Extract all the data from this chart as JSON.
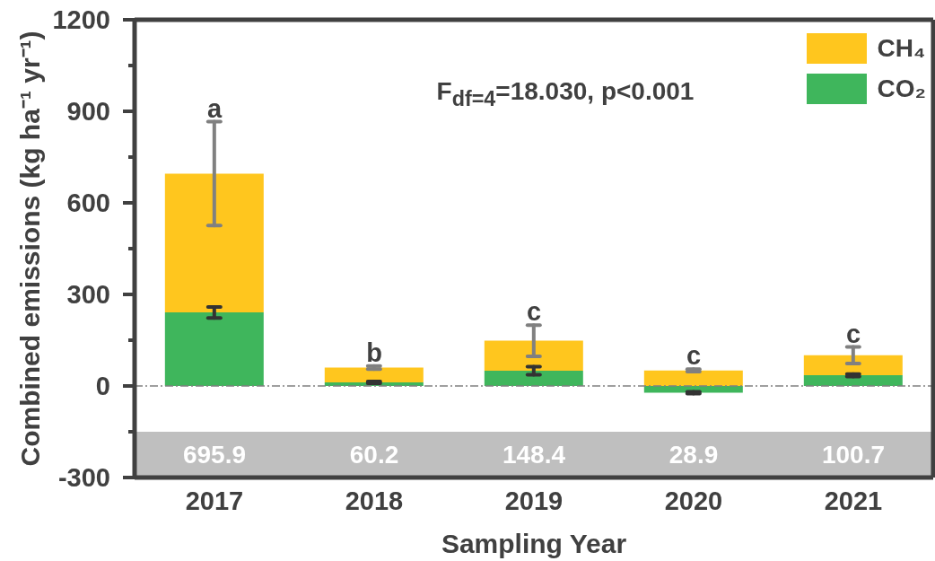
{
  "chart_data": {
    "type": "bar",
    "xlabel": "Sampling Year",
    "ylabel": "Combined emissions (kg ha⁻¹ yr⁻¹)",
    "categories": [
      "2017",
      "2018",
      "2019",
      "2020",
      "2021"
    ],
    "series": [
      {
        "name": "CO₂",
        "color": "#3fb65c",
        "values": [
          241,
          12,
          50,
          -22,
          35
        ],
        "errors": [
          18,
          3,
          13,
          3,
          4
        ]
      },
      {
        "name": "CH₄",
        "color": "#ffc61e",
        "values": [
          454.9,
          48.2,
          98.4,
          50.9,
          65.7
        ],
        "errors": [
          170,
          5,
          51,
          4,
          27
        ]
      }
    ],
    "stacked": true,
    "ylim": [
      -300,
      1200
    ],
    "yticks": [
      -300,
      {
        "value": -150,
        "label": null
      },
      0,
      {
        "value": 150,
        "label": null
      },
      300,
      {
        "value": 450,
        "label": null
      },
      600,
      {
        "value": 750,
        "label": null
      },
      900,
      {
        "value": 1050,
        "label": null
      },
      1200
    ],
    "totals": [
      "695.9",
      "60.2",
      "148.4",
      "28.9",
      "100.7"
    ],
    "bands": [
      {
        "axis": "y",
        "from": -150,
        "to": -300,
        "color": "#bfbfbf"
      }
    ],
    "ref_lines": [
      {
        "axis": "y",
        "value": 0,
        "color": "#808080",
        "line_style": "dashed"
      }
    ],
    "annotations": [
      "F$_{df=4}$=18.030, p<0.001",
      {
        "text": "a",
        "x": "2017",
        "y": 695.9
      },
      {
        "text": "b",
        "x": "2018",
        "y": 60.2
      },
      {
        "text": "c",
        "x": "2019",
        "y": 148.4
      },
      {
        "text": "c",
        "x": "2020",
        "y": 50.9
      },
      {
        "text": "c",
        "x": "2021",
        "y": 100.7
      }
    ],
    "legend": "top right"
  }
}
